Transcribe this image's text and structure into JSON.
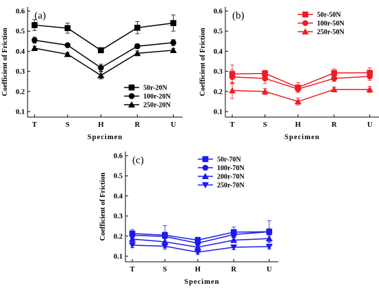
{
  "chart_data": [
    {
      "type": "line",
      "panel_label": "(a)",
      "color": "#000000",
      "categories": [
        "T",
        "S",
        "H",
        "R",
        "U"
      ],
      "xlabel": "Specimen",
      "ylabel": "Coefficient of Friction",
      "ylim": [
        0.1,
        0.6
      ],
      "yticks": [
        "0.1",
        "0.2",
        "0.3",
        "0.4",
        "0.5",
        "0.6"
      ],
      "grid": false,
      "legend_position": "right",
      "series": [
        {
          "name": "50r-20N",
          "marker": "square",
          "values": [
            0.53,
            0.515,
            0.405,
            0.517,
            0.54
          ],
          "errors": [
            0.027,
            0.025,
            0.012,
            0.03,
            0.04
          ]
        },
        {
          "name": "100r-20N",
          "marker": "circle",
          "values": [
            0.455,
            0.43,
            0.318,
            0.425,
            0.443
          ],
          "errors": [
            0.015,
            0.008,
            0.018,
            0.012,
            0.015
          ]
        },
        {
          "name": "250r-20N",
          "marker": "triangle-up",
          "values": [
            0.415,
            0.385,
            0.28,
            0.39,
            0.405
          ],
          "errors": [
            0.01,
            0.008,
            0.018,
            0.012,
            0.008
          ]
        }
      ]
    },
    {
      "type": "line",
      "panel_label": "(b)",
      "color": "#ee1c24",
      "categories": [
        "T",
        "S",
        "H",
        "R",
        "U"
      ],
      "xlabel": "Specimen",
      "ylabel": "Coefficient of Friction",
      "ylim": [
        0.1,
        0.6
      ],
      "yticks": [
        "0.1",
        "0.2",
        "0.3",
        "0.4",
        "0.5",
        "0.6"
      ],
      "grid": false,
      "legend_position": "top-right",
      "series": [
        {
          "name": "50r-50N",
          "marker": "square",
          "values": [
            0.287,
            0.29,
            0.22,
            0.292,
            0.293
          ],
          "errors": [
            0.045,
            0.015,
            0.025,
            0.02,
            0.025
          ]
        },
        {
          "name": "100r-50N",
          "marker": "circle",
          "values": [
            0.272,
            0.265,
            0.212,
            0.265,
            0.275
          ],
          "errors": [
            0.035,
            0.025,
            0.012,
            0.015,
            0.02
          ]
        },
        {
          "name": "250r-50N",
          "marker": "triangle-up",
          "values": [
            0.205,
            0.2,
            0.15,
            0.21,
            0.21
          ],
          "errors": [
            0.04,
            0.015,
            0.018,
            0.012,
            0.015
          ]
        }
      ]
    },
    {
      "type": "line",
      "panel_label": "(c)",
      "color": "#1a1aee",
      "categories": [
        "T",
        "S",
        "H",
        "R",
        "U"
      ],
      "xlabel": "Specimen",
      "ylabel": "Coefficient of Friction",
      "ylim": [
        0.1,
        0.6
      ],
      "yticks": [
        "0.1",
        "0.2",
        "0.3",
        "0.4",
        "0.5",
        "0.6"
      ],
      "grid": false,
      "legend_position": "top-right",
      "series": [
        {
          "name": "50r-70N",
          "marker": "square",
          "values": [
            0.213,
            0.205,
            0.18,
            0.22,
            0.222
          ],
          "errors": [
            0.02,
            0.015,
            0.015,
            0.025,
            0.055
          ]
        },
        {
          "name": "100r-70N",
          "marker": "circle",
          "values": [
            0.205,
            0.198,
            0.165,
            0.208,
            0.222
          ],
          "errors": [
            0.015,
            0.055,
            0.012,
            0.015,
            0.015
          ]
        },
        {
          "name": "200r-70N",
          "marker": "triangle-up",
          "values": [
            0.185,
            0.172,
            0.145,
            0.18,
            0.188
          ],
          "errors": [
            0.015,
            0.015,
            0.015,
            0.012,
            0.015
          ]
        },
        {
          "name": "250r-70N",
          "marker": "triangle-down",
          "values": [
            0.155,
            0.15,
            0.12,
            0.145,
            0.148
          ],
          "errors": [
            0.012,
            0.015,
            0.01,
            0.012,
            0.012
          ]
        }
      ]
    }
  ]
}
